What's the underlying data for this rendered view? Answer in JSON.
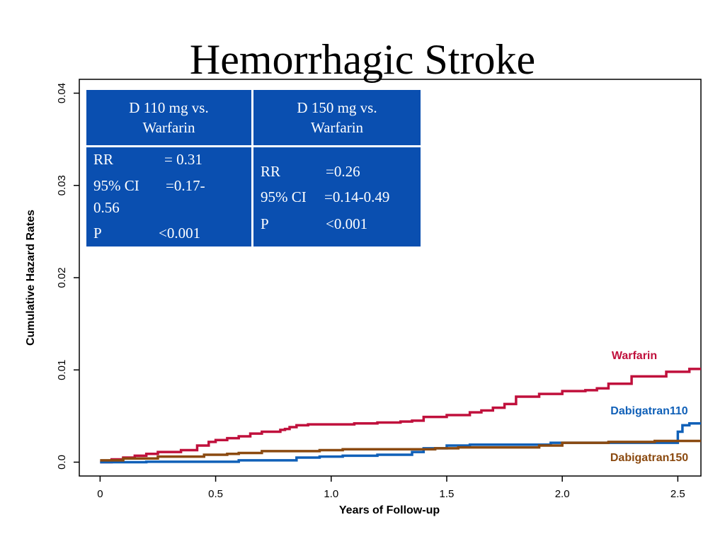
{
  "title": "Hemorrhagic Stroke",
  "table": {
    "headers": [
      "D 110 mg vs.\nWarfarin",
      "D 150 mg vs.\nWarfarin"
    ],
    "d110": {
      "rr_label": "RR",
      "rr_value": "= 0.31",
      "ci_label": "95% CI",
      "ci_value": "=0.17-",
      "ci_value_cont": "0.56",
      "p_label": "P",
      "p_value": "<0.001"
    },
    "d150": {
      "rr_label": "RR",
      "rr_value": "=0.26",
      "ci_label": "95% CI",
      "ci_value": "=0.14-0.49",
      "p_label": "P",
      "p_value": "<0.001"
    }
  },
  "chart_data": {
    "type": "line",
    "step": true,
    "xlabel": "Years of Follow-up",
    "ylabel": "Cumulative Hazard Rates",
    "xlim": [
      -0.09,
      2.6
    ],
    "ylim": [
      -0.0015,
      0.0415
    ],
    "x_ticks": [
      0,
      0.5,
      1.0,
      1.5,
      2.0,
      2.5
    ],
    "x_tick_labels": [
      "0",
      "0.5",
      "1.0",
      "1.5",
      "2.0",
      "2.5"
    ],
    "y_ticks": [
      0,
      0.01,
      0.02,
      0.03,
      0.04
    ],
    "y_tick_labels": [
      "0.0",
      "0.01",
      "0.02",
      "0.03",
      "0.04"
    ],
    "series": [
      {
        "name": "Warfarin",
        "color": "#c0103c",
        "x": [
          0,
          0.05,
          0.1,
          0.15,
          0.2,
          0.25,
          0.35,
          0.42,
          0.47,
          0.5,
          0.55,
          0.6,
          0.65,
          0.7,
          0.78,
          0.8,
          0.82,
          0.85,
          0.9,
          1.0,
          1.05,
          1.1,
          1.2,
          1.3,
          1.35,
          1.4,
          1.5,
          1.55,
          1.6,
          1.65,
          1.7,
          1.75,
          1.8,
          1.9,
          2.0,
          2.1,
          2.15,
          2.2,
          2.3,
          2.45,
          2.55,
          2.6
        ],
        "values": [
          0,
          0.0003,
          0.0005,
          0.0007,
          0.0009,
          0.0011,
          0.0013,
          0.0018,
          0.0022,
          0.0024,
          0.0026,
          0.0028,
          0.0031,
          0.0033,
          0.0035,
          0.0036,
          0.0038,
          0.004,
          0.0041,
          0.0041,
          0.0041,
          0.0042,
          0.0043,
          0.0044,
          0.0045,
          0.0049,
          0.0051,
          0.0051,
          0.0054,
          0.0056,
          0.0059,
          0.0063,
          0.0071,
          0.0074,
          0.0077,
          0.0078,
          0.008,
          0.0085,
          0.0093,
          0.0098,
          0.0101,
          0.0101
        ]
      },
      {
        "name": "Dabigatran110",
        "color": "#1060b8",
        "x": [
          0,
          0.2,
          0.55,
          0.6,
          0.8,
          0.85,
          0.95,
          1.05,
          1.2,
          1.3,
          1.35,
          1.4,
          1.5,
          1.6,
          1.85,
          1.95,
          2.1,
          2.48,
          2.5,
          2.52,
          2.55,
          2.6
        ],
        "values": [
          0,
          5e-05,
          5e-05,
          0.0002,
          0.0002,
          0.0005,
          0.0006,
          0.0007,
          0.0008,
          0.0008,
          0.0011,
          0.0015,
          0.0018,
          0.0019,
          0.0019,
          0.0021,
          0.0021,
          0.0021,
          0.0033,
          0.004,
          0.0042,
          0.0042
        ]
      },
      {
        "name": "Dabigatran150",
        "color": "#8b4a10",
        "x": [
          0,
          0.1,
          0.25,
          0.45,
          0.55,
          0.6,
          0.7,
          0.85,
          0.95,
          1.05,
          1.25,
          1.45,
          1.55,
          1.75,
          1.9,
          2.0,
          2.2,
          2.4,
          2.6
        ],
        "values": [
          0.0002,
          0.0004,
          0.0006,
          0.0008,
          0.0009,
          0.001,
          0.0012,
          0.0012,
          0.0013,
          0.0014,
          0.0014,
          0.0015,
          0.0016,
          0.0016,
          0.0018,
          0.0021,
          0.0022,
          0.0023,
          0.0023
        ]
      }
    ]
  }
}
